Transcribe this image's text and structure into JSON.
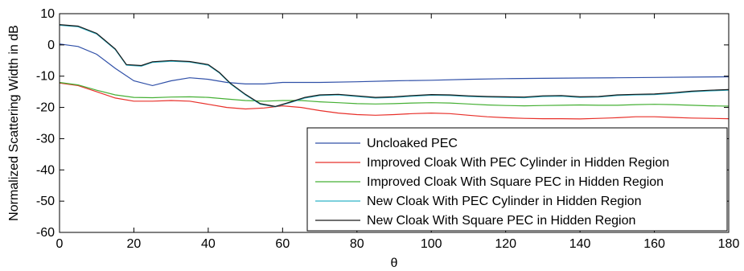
{
  "chart_data": {
    "type": "line",
    "title": "",
    "xlabel": "θ",
    "ylabel": "Normalized Scattering Width in dB",
    "xlim": [
      0,
      180
    ],
    "ylim": [
      -60,
      10
    ],
    "xticks": [
      0,
      20,
      40,
      60,
      80,
      100,
      120,
      140,
      160,
      180
    ],
    "yticks": [
      10,
      0,
      -10,
      -20,
      -30,
      -40,
      -50,
      -60
    ],
    "grid": false,
    "legend_position": "bottom-right",
    "series": [
      {
        "name": "Uncloaked PEC",
        "color": "#3050a8",
        "x": [
          0,
          5,
          10,
          15,
          20,
          25,
          30,
          35,
          40,
          45,
          50,
          55,
          60,
          65,
          70,
          80,
          90,
          100,
          110,
          120,
          130,
          140,
          150,
          160,
          170,
          180
        ],
        "y": [
          0.3,
          -0.5,
          -3,
          -7.5,
          -11.5,
          -13,
          -11.5,
          -10.5,
          -11,
          -12,
          -12.5,
          -12.5,
          -12,
          -12,
          -12,
          -11.8,
          -11.5,
          -11.3,
          -11,
          -10.8,
          -10.7,
          -10.6,
          -10.5,
          -10.4,
          -10.3,
          -10.2
        ]
      },
      {
        "name": "Improved Cloak With PEC Cylinder in Hidden Region",
        "color": "#e8302a",
        "x": [
          0,
          5,
          10,
          15,
          20,
          25,
          30,
          35,
          40,
          45,
          50,
          55,
          60,
          65,
          70,
          75,
          80,
          85,
          90,
          95,
          100,
          105,
          110,
          115,
          120,
          125,
          130,
          135,
          140,
          145,
          150,
          155,
          160,
          165,
          170,
          175,
          180
        ],
        "y": [
          -12.2,
          -13,
          -15,
          -17,
          -18,
          -18,
          -17.8,
          -18,
          -19,
          -20,
          -20.5,
          -20.2,
          -19.5,
          -20,
          -21,
          -21.8,
          -22.3,
          -22.5,
          -22.3,
          -22,
          -21.8,
          -22,
          -22.5,
          -23,
          -23.3,
          -23.5,
          -23.6,
          -23.6,
          -23.7,
          -23.5,
          -23.3,
          -23,
          -23,
          -23.2,
          -23.4,
          -23.5,
          -23.6
        ]
      },
      {
        "name": "Improved Cloak With Square PEC in Hidden Region",
        "color": "#46b035",
        "x": [
          0,
          5,
          10,
          15,
          20,
          25,
          30,
          35,
          40,
          45,
          50,
          55,
          60,
          65,
          70,
          75,
          80,
          85,
          90,
          95,
          100,
          105,
          110,
          115,
          120,
          125,
          130,
          135,
          140,
          145,
          150,
          155,
          160,
          165,
          170,
          175,
          180
        ],
        "y": [
          -12,
          -12.8,
          -14.5,
          -16,
          -16.8,
          -16.9,
          -16.7,
          -16.6,
          -16.8,
          -17.3,
          -17.8,
          -18,
          -17.8,
          -17.8,
          -18.2,
          -18.5,
          -18.8,
          -18.9,
          -18.8,
          -18.6,
          -18.5,
          -18.6,
          -18.9,
          -19.2,
          -19.4,
          -19.5,
          -19.4,
          -19.3,
          -19.2,
          -19.3,
          -19.3,
          -19.1,
          -19,
          -19.1,
          -19.3,
          -19.5,
          -19.6
        ]
      },
      {
        "name": "New Cloak With PEC Cylinder in Hidden Region",
        "color": "#2fb3c8",
        "x": [
          0,
          5,
          10,
          15,
          18,
          22,
          25,
          30,
          35,
          40,
          43,
          46,
          50,
          54,
          58,
          62,
          66,
          70,
          75,
          80,
          85,
          90,
          95,
          100,
          105,
          110,
          115,
          120,
          125,
          130,
          135,
          140,
          145,
          150,
          155,
          160,
          165,
          170,
          175,
          180
        ],
        "y": [
          6.3,
          5.8,
          3.5,
          -1.5,
          -6.5,
          -6.8,
          -5.6,
          -5.2,
          -5.5,
          -6.5,
          -9,
          -12.5,
          -16,
          -19,
          -19.8,
          -18.5,
          -17,
          -16.2,
          -16,
          -16.5,
          -17,
          -16.8,
          -16.4,
          -16.1,
          -16.2,
          -16.5,
          -16.7,
          -16.8,
          -16.9,
          -16.5,
          -16.4,
          -16.8,
          -16.7,
          -16.2,
          -16,
          -15.9,
          -15.5,
          -15,
          -14.7,
          -14.5
        ]
      },
      {
        "name": "New Cloak With Square PEC in Hidden Region",
        "color": "#1a1a1a",
        "x": [
          0,
          5,
          10,
          15,
          18,
          22,
          25,
          30,
          35,
          40,
          43,
          46,
          50,
          54,
          58,
          62,
          66,
          70,
          75,
          80,
          85,
          90,
          95,
          100,
          105,
          110,
          115,
          120,
          125,
          130,
          135,
          140,
          145,
          150,
          155,
          160,
          165,
          170,
          175,
          180
        ],
        "y": [
          6.5,
          6,
          3.7,
          -1.3,
          -6.3,
          -6.6,
          -5.4,
          -5,
          -5.3,
          -6.3,
          -8.8,
          -12.3,
          -15.8,
          -18.8,
          -19.7,
          -18.3,
          -16.8,
          -16,
          -15.8,
          -16.3,
          -16.8,
          -16.6,
          -16.2,
          -15.9,
          -16,
          -16.3,
          -16.5,
          -16.6,
          -16.7,
          -16.3,
          -16.2,
          -16.6,
          -16.5,
          -16,
          -15.8,
          -15.7,
          -15.3,
          -14.8,
          -14.5,
          -14.3
        ]
      }
    ]
  }
}
